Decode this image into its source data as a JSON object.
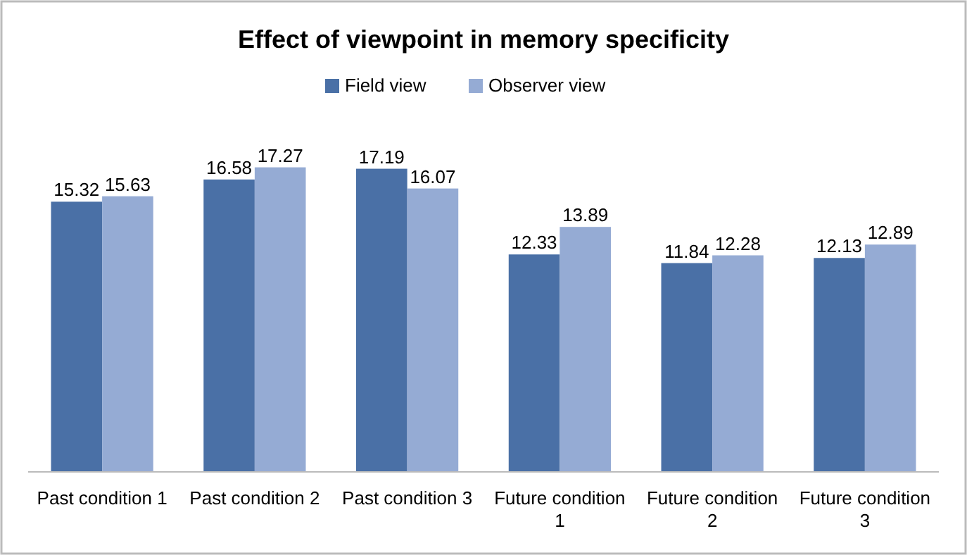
{
  "chart_data": {
    "type": "bar",
    "title": "Effect of viewpoint in memory specificity",
    "categories": [
      "Past condition 1",
      "Past condition 2",
      "Past condition 3",
      "Future condition 1",
      "Future condition 2",
      "Future condition 3"
    ],
    "series": [
      {
        "name": "Field view",
        "color": "#4a70a6",
        "values": [
          15.32,
          16.58,
          17.19,
          12.33,
          11.84,
          12.13
        ]
      },
      {
        "name": "Observer view",
        "color": "#95abd4",
        "values": [
          15.63,
          17.27,
          16.07,
          13.89,
          12.28,
          12.89
        ]
      }
    ],
    "data_labels": true,
    "legend": "top"
  }
}
